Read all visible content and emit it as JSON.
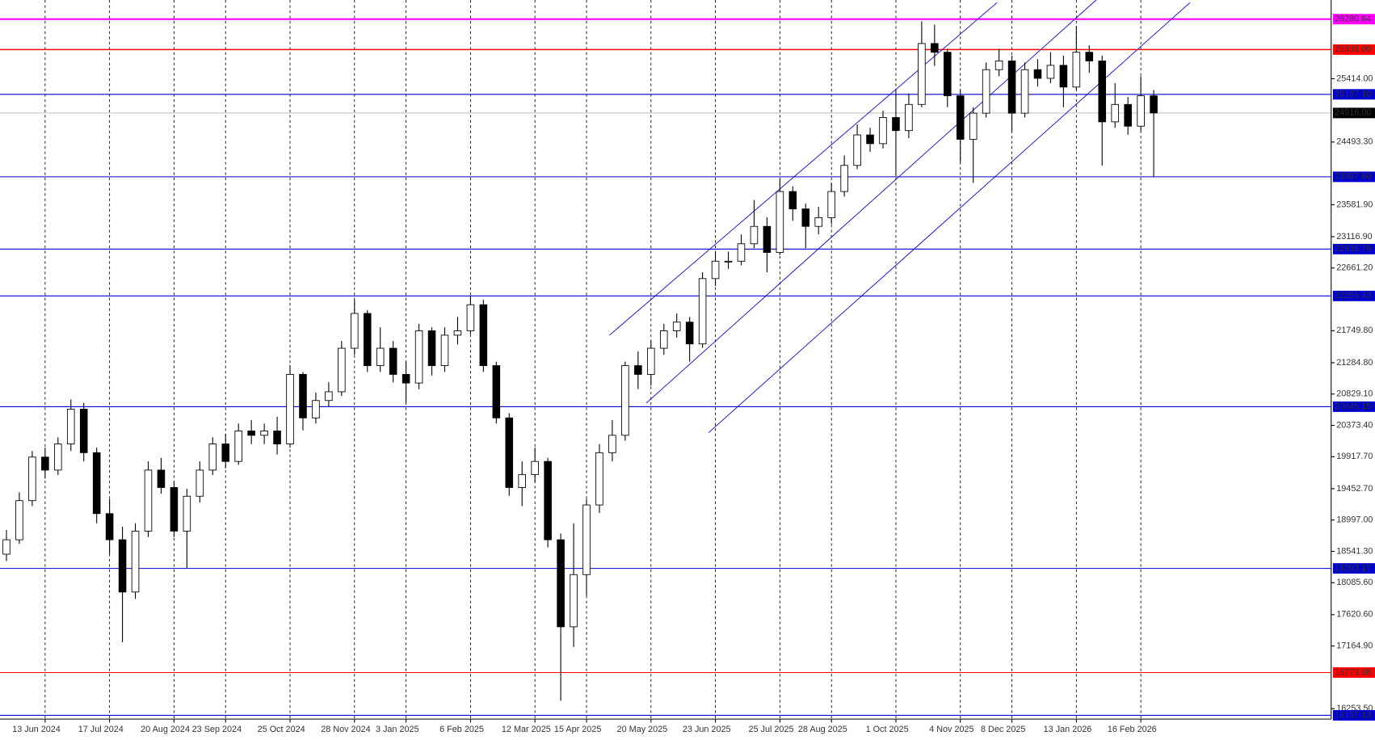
{
  "chart_data": {
    "type": "candlestick",
    "ylim": [
      16102,
      26559
    ],
    "yticks": [
      {
        "value": 16253.5,
        "label": "16253.50"
      },
      {
        "value": 17164.9,
        "label": "17164.90"
      },
      {
        "value": 17620.6,
        "label": "17620.60"
      },
      {
        "value": 18085.6,
        "label": "18085.60"
      },
      {
        "value": 18541.3,
        "label": "18541.30"
      },
      {
        "value": 18997,
        "label": "18997.00"
      },
      {
        "value": 19452.7,
        "label": "19452.70"
      },
      {
        "value": 19917.7,
        "label": "19917.70"
      },
      {
        "value": 20373.4,
        "label": "20373.40"
      },
      {
        "value": 20829.1,
        "label": "20829.10"
      },
      {
        "value": 21284.8,
        "label": "21284.80"
      },
      {
        "value": 21749.8,
        "label": "21749.80"
      },
      {
        "value": 22661.2,
        "label": "22661.20"
      },
      {
        "value": 23116.9,
        "label": "23116.90"
      },
      {
        "value": 23581.9,
        "label": "23581.90"
      },
      {
        "value": 24493.3,
        "label": "24493.30"
      },
      {
        "value": 25414,
        "label": "25414.00"
      }
    ],
    "levels": [
      {
        "value": 26280.64,
        "label": "26280.64",
        "color": "#ff00ff"
      },
      {
        "value": 25838,
        "label": "25838.00",
        "color": "#ff0000"
      },
      {
        "value": 25187.1,
        "label": "25187.10",
        "color": "#0000cd"
      },
      {
        "value": 24916,
        "label": "24916.00",
        "color": "#000000"
      },
      {
        "value": 23987.6,
        "label": "23987.60",
        "color": "#0000cd"
      },
      {
        "value": 22936.79,
        "label": "22936.79",
        "color": "#0000cd"
      },
      {
        "value": 22255.43,
        "label": "22255.43",
        "color": "#0000cd"
      },
      {
        "value": 20645.15,
        "label": "20645.15",
        "color": "#0000cd"
      },
      {
        "value": 18293.17,
        "label": "18293.17",
        "color": "#0000cd"
      },
      {
        "value": 16779.08,
        "label": "16779.08",
        "color": "#ff0000"
      },
      {
        "value": 16157.13,
        "label": "16157.13",
        "color": "#0000cd"
      }
    ],
    "categories": [
      null,
      null,
      null,
      "13 Jun 2024",
      null,
      null,
      null,
      null,
      "17 Jul 2024",
      null,
      null,
      null,
      null,
      "20 Aug 2024",
      null,
      null,
      null,
      "23 Sep 2024",
      null,
      null,
      null,
      null,
      "25 Oct 2024",
      null,
      null,
      null,
      null,
      "28 Nov 2024",
      null,
      null,
      null,
      "3 Jan 2025",
      null,
      null,
      null,
      null,
      "6 Feb 2025",
      null,
      null,
      null,
      null,
      "12 Mar 2025",
      null,
      null,
      null,
      "15 Apr 2025",
      null,
      null,
      null,
      null,
      "20 May 2025",
      null,
      null,
      null,
      null,
      "23 Jun 2025",
      null,
      null,
      null,
      null,
      "25 Jul 2025",
      null,
      null,
      null,
      "28 Aug 2025",
      null,
      null,
      null,
      null,
      "1 Oct 2025",
      null,
      null,
      null,
      null,
      "4 Nov 2025",
      null,
      null,
      null,
      "8 Dec 2025",
      null,
      null,
      null,
      null,
      "13 Jan 2026",
      null,
      null,
      null,
      null,
      "16 Feb 2026",
      null
    ],
    "open": [
      18500,
      18710,
      19279,
      19912,
      19723,
      20103,
      20609,
      19976,
      19090,
      18710,
      17950,
      18836,
      19723,
      19470,
      18836,
      19343,
      19723,
      20103,
      19849,
      20292,
      20229,
      20292,
      20103,
      21115,
      20482,
      20735,
      20862,
      21495,
      22001,
      21242,
      21495,
      21115,
      20989,
      21749,
      21242,
      21685,
      21749,
      22128,
      21242,
      20482,
      19470,
      19659,
      19849,
      18710,
      17444,
      18203,
      19216,
      19976,
      20229,
      21242,
      21115,
      21495,
      21749,
      21875,
      21558,
      22508,
      22761,
      22761,
      23014,
      23267,
      22888,
      23774,
      23521,
      23267,
      23394,
      23774,
      24154,
      24597,
      24470,
      24850,
      24660,
      25040,
      25926,
      25799,
      25166,
      24533,
      24913,
      25546,
      25673,
      24913,
      25546,
      25420,
      25609,
      25293,
      25799,
      25673,
      24787,
      25040,
      24724,
      25166
    ],
    "high": [
      18850,
      19400,
      20000,
      20050,
      20200,
      20750,
      20700,
      20050,
      19300,
      18900,
      18950,
      19850,
      19900,
      19550,
      19450,
      19850,
      20200,
      20250,
      20400,
      20450,
      20400,
      20500,
      21250,
      21150,
      20850,
      21000,
      21600,
      22200,
      22050,
      21800,
      21600,
      21300,
      21850,
      21800,
      21800,
      21950,
      22250,
      22200,
      21300,
      20550,
      19850,
      20050,
      19900,
      18800,
      18950,
      19300,
      20100,
      20450,
      21300,
      21450,
      21600,
      21850,
      22000,
      21950,
      22600,
      22900,
      22900,
      23150,
      23650,
      23400,
      23950,
      23850,
      23600,
      23550,
      23900,
      24300,
      24750,
      24700,
      24950,
      25250,
      25200,
      26250,
      26200,
      25850,
      25250,
      25000,
      25650,
      25850,
      25750,
      25650,
      25700,
      25800,
      25750,
      26180,
      25900,
      25750,
      25350,
      25150,
      25450,
      25250
    ],
    "low": [
      18400,
      18650,
      19200,
      19600,
      19650,
      20000,
      19850,
      18950,
      18500,
      17220,
      17850,
      18750,
      19380,
      18750,
      18300,
      19250,
      19650,
      19750,
      19800,
      20100,
      20100,
      19950,
      20050,
      20300,
      20400,
      20650,
      20800,
      21400,
      21150,
      21150,
      21000,
      20700,
      20900,
      21100,
      21150,
      21550,
      21700,
      21150,
      20400,
      19350,
      19200,
      19550,
      18600,
      16370,
      17150,
      17900,
      19100,
      19850,
      20150,
      20900,
      20950,
      21400,
      21650,
      21300,
      21500,
      22400,
      22650,
      22700,
      22950,
      22600,
      22850,
      23350,
      22950,
      23150,
      23300,
      23700,
      24100,
      24350,
      24400,
      24000,
      24550,
      25000,
      25600,
      25000,
      24200,
      23900,
      24850,
      25450,
      24650,
      24850,
      25300,
      25350,
      25000,
      25250,
      25500,
      24150,
      24700,
      24600,
      24650,
      23990
    ],
    "close": [
      18710,
      19279,
      19912,
      19723,
      20103,
      20609,
      19976,
      19090,
      18710,
      17950,
      18836,
      19723,
      19470,
      18836,
      19343,
      19723,
      20103,
      19849,
      20292,
      20229,
      20292,
      20103,
      21115,
      20482,
      20735,
      20862,
      21495,
      22001,
      21242,
      21495,
      21115,
      20989,
      21749,
      21242,
      21685,
      21749,
      22128,
      21242,
      20482,
      19470,
      19659,
      19849,
      18710,
      17444,
      18203,
      19216,
      19976,
      20229,
      21242,
      21115,
      21495,
      21749,
      21875,
      21558,
      22508,
      22761,
      22761,
      23014,
      23267,
      22888,
      23774,
      23521,
      23267,
      23394,
      23774,
      24154,
      24597,
      24470,
      24850,
      24660,
      25040,
      25926,
      25799,
      25166,
      24533,
      24913,
      25546,
      25673,
      24913,
      25546,
      25420,
      25609,
      25293,
      25799,
      25673,
      24787,
      25040,
      24724,
      25166,
      24916
    ],
    "grid": true
  }
}
